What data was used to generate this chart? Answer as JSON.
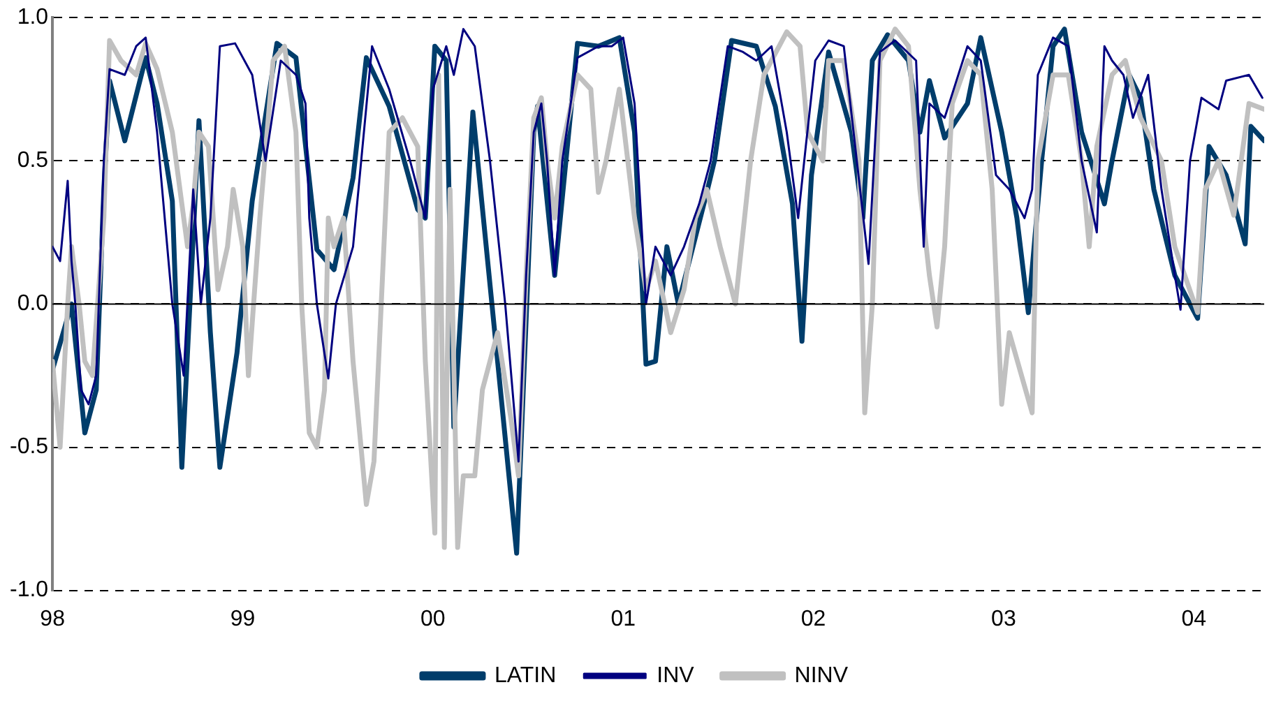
{
  "chart_data": {
    "type": "line",
    "xlim": [
      1998,
      2004.37
    ],
    "ylim": [
      -1,
      1
    ],
    "xticks": [
      {
        "value": 1998,
        "label": "98"
      },
      {
        "value": 1999,
        "label": "99"
      },
      {
        "value": 2000,
        "label": "00"
      },
      {
        "value": 2001,
        "label": "01"
      },
      {
        "value": 2002,
        "label": "02"
      },
      {
        "value": 2003,
        "label": "03"
      },
      {
        "value": 2004,
        "label": "04"
      }
    ],
    "yticks": [
      {
        "value": -1,
        "label": "-1.0"
      },
      {
        "value": -0.5,
        "label": "-0.5"
      },
      {
        "value": 0,
        "label": "0.0"
      },
      {
        "value": 0.5,
        "label": "0.5"
      },
      {
        "value": 1,
        "label": "1.0"
      }
    ],
    "grid": "y",
    "legend": "bottom",
    "marker": "none",
    "line_style": "solid",
    "ref_lines": [
      {
        "axis": "y",
        "value": 0,
        "color": "#000000",
        "line_style": "solid"
      }
    ],
    "series": [
      {
        "name": "LATIN",
        "color": "#003d6b",
        "x": [
          1998.0,
          1998.1,
          1998.17,
          1998.23,
          1998.27,
          1998.3,
          1998.38,
          1998.49,
          1998.55,
          1998.63,
          1998.68,
          1998.77,
          1998.83,
          1998.88,
          1998.97,
          1999.05,
          1999.18,
          1999.28,
          1999.39,
          1999.48,
          1999.58,
          1999.65,
          1999.77,
          1999.92,
          1999.96,
          2000.01,
          2000.07,
          2000.11,
          2000.21,
          2000.34,
          2000.44,
          2000.53,
          2000.55,
          2000.64,
          2000.76,
          2000.87,
          2000.98,
          2001.06,
          2001.12,
          2001.17,
          2001.23,
          2001.29,
          2001.44,
          2001.48,
          2001.57,
          2001.7,
          2001.8,
          2001.89,
          2001.94,
          2001.99,
          2002.08,
          2002.2,
          2002.26,
          2002.31,
          2002.39,
          2002.5,
          2002.56,
          2002.61,
          2002.69,
          2002.81,
          2002.88,
          2002.99,
          2003.07,
          2003.13,
          2003.2,
          2003.26,
          2003.32,
          2003.41,
          2003.53,
          2003.57,
          2003.66,
          2003.72,
          2003.79,
          2003.9,
          2004.02,
          2004.08,
          2004.17,
          2004.27,
          2004.3,
          2004.37
        ],
        "values": [
          -0.23,
          0.0,
          -0.45,
          -0.3,
          0.4,
          0.78,
          0.57,
          0.86,
          0.7,
          0.36,
          -0.57,
          0.64,
          -0.1,
          -0.57,
          -0.17,
          0.36,
          0.91,
          0.86,
          0.19,
          0.12,
          0.44,
          0.86,
          0.69,
          0.33,
          0.3,
          0.9,
          0.85,
          -0.43,
          0.67,
          -0.2,
          -0.87,
          0.6,
          0.69,
          0.1,
          0.91,
          0.9,
          0.93,
          0.6,
          -0.21,
          -0.2,
          0.2,
          0.0,
          0.39,
          0.5,
          0.92,
          0.9,
          0.69,
          0.35,
          -0.13,
          0.45,
          0.88,
          0.6,
          0.3,
          0.85,
          0.94,
          0.85,
          0.6,
          0.78,
          0.58,
          0.7,
          0.93,
          0.6,
          0.3,
          -0.03,
          0.5,
          0.9,
          0.96,
          0.6,
          0.35,
          0.5,
          0.8,
          0.72,
          0.4,
          0.1,
          -0.05,
          0.55,
          0.45,
          0.21,
          0.62,
          0.57
        ]
      },
      {
        "name": "INV",
        "color": "#000080",
        "x": [
          1998.0,
          1998.04,
          1998.08,
          1998.1,
          1998.12,
          1998.15,
          1998.19,
          1998.23,
          1998.27,
          1998.3,
          1998.38,
          1998.44,
          1998.49,
          1998.55,
          1998.63,
          1998.69,
          1998.74,
          1998.78,
          1998.83,
          1998.88,
          1998.96,
          1999.05,
          1999.12,
          1999.2,
          1999.28,
          1999.33,
          1999.35,
          1999.39,
          1999.45,
          1999.49,
          1999.58,
          1999.68,
          1999.77,
          1999.88,
          1999.96,
          2000.0,
          2000.07,
          2000.11,
          2000.16,
          2000.22,
          2000.3,
          2000.38,
          2000.45,
          2000.49,
          2000.53,
          2000.57,
          2000.6,
          2000.64,
          2000.68,
          2000.76,
          2000.87,
          2000.94,
          2001.0,
          2001.06,
          2001.12,
          2001.17,
          2001.25,
          2001.32,
          2001.4,
          2001.46,
          2001.55,
          2001.63,
          2001.7,
          2001.78,
          2001.86,
          2001.92,
          2001.96,
          2002.01,
          2002.08,
          2002.16,
          2002.29,
          2002.35,
          2002.43,
          2002.54,
          2002.58,
          2002.61,
          2002.69,
          2002.81,
          2002.88,
          2002.96,
          2003.03,
          2003.11,
          2003.15,
          2003.18,
          2003.26,
          2003.34,
          2003.41,
          2003.49,
          2003.53,
          2003.57,
          2003.63,
          2003.68,
          2003.76,
          2003.83,
          2003.9,
          2003.93,
          2003.98,
          2004.04,
          2004.13,
          2004.17,
          2004.29,
          2004.36
        ],
        "values": [
          0.2,
          0.15,
          0.43,
          0.15,
          0.0,
          -0.3,
          -0.35,
          -0.25,
          0.5,
          0.82,
          0.8,
          0.9,
          0.93,
          0.6,
          0.0,
          -0.25,
          0.4,
          0.0,
          0.3,
          0.9,
          0.91,
          0.8,
          0.5,
          0.85,
          0.8,
          0.7,
          0.3,
          0.0,
          -0.26,
          0.0,
          0.2,
          0.9,
          0.75,
          0.5,
          0.3,
          0.75,
          0.9,
          0.8,
          0.96,
          0.9,
          0.5,
          0.0,
          -0.55,
          0.1,
          0.6,
          0.7,
          0.5,
          0.1,
          0.5,
          0.86,
          0.9,
          0.9,
          0.93,
          0.7,
          0.0,
          0.2,
          0.1,
          0.2,
          0.35,
          0.5,
          0.9,
          0.88,
          0.85,
          0.9,
          0.6,
          0.3,
          0.55,
          0.85,
          0.92,
          0.9,
          0.14,
          0.88,
          0.92,
          0.85,
          0.2,
          0.7,
          0.65,
          0.9,
          0.85,
          0.45,
          0.4,
          0.3,
          0.4,
          0.8,
          0.93,
          0.9,
          0.5,
          0.25,
          0.9,
          0.85,
          0.8,
          0.65,
          0.8,
          0.4,
          0.1,
          -0.02,
          0.5,
          0.72,
          0.68,
          0.78,
          0.8,
          0.72
        ]
      },
      {
        "name": "NINV",
        "color": "#c0c0c0",
        "x": [
          1998.0,
          1998.04,
          1998.08,
          1998.1,
          1998.14,
          1998.17,
          1998.21,
          1998.27,
          1998.3,
          1998.36,
          1998.44,
          1998.49,
          1998.55,
          1998.63,
          1998.71,
          1998.74,
          1998.77,
          1998.82,
          1998.87,
          1998.92,
          1998.95,
          1999.0,
          1999.03,
          1999.09,
          1999.16,
          1999.22,
          1999.28,
          1999.31,
          1999.35,
          1999.39,
          1999.43,
          1999.45,
          1999.48,
          1999.53,
          1999.58,
          1999.65,
          1999.69,
          1999.77,
          1999.84,
          1999.92,
          1999.96,
          2000.01,
          2000.03,
          2000.06,
          2000.09,
          2000.13,
          2000.16,
          2000.22,
          2000.26,
          2000.3,
          2000.34,
          2000.41,
          2000.45,
          2000.49,
          2000.53,
          2000.57,
          2000.6,
          2000.64,
          2000.68,
          2000.76,
          2000.83,
          2000.87,
          2000.91,
          2000.98,
          2001.06,
          2001.12,
          2001.17,
          2001.25,
          2001.32,
          2001.38,
          2001.44,
          2001.51,
          2001.57,
          2001.59,
          2001.67,
          2001.74,
          2001.86,
          2001.93,
          2001.97,
          2002.05,
          2002.08,
          2002.16,
          2002.24,
          2002.27,
          2002.31,
          2002.35,
          2002.43,
          2002.5,
          2002.56,
          2002.61,
          2002.65,
          2002.69,
          2002.73,
          2002.81,
          2002.88,
          2002.94,
          2002.99,
          2003.03,
          2003.15,
          2003.18,
          2003.26,
          2003.34,
          2003.41,
          2003.45,
          2003.49,
          2003.57,
          2003.64,
          2003.72,
          2003.83,
          2003.9,
          2004.02,
          2004.06,
          2004.13,
          2004.21,
          2004.29,
          2004.37
        ],
        "values": [
          -0.2,
          -0.5,
          0.0,
          0.2,
          0.0,
          -0.2,
          -0.25,
          0.3,
          0.92,
          0.85,
          0.8,
          0.91,
          0.82,
          0.6,
          0.2,
          0.35,
          0.6,
          0.55,
          0.05,
          0.2,
          0.4,
          0.2,
          -0.25,
          0.3,
          0.85,
          0.9,
          0.6,
          0.0,
          -0.45,
          -0.5,
          -0.3,
          0.3,
          0.2,
          0.3,
          -0.2,
          -0.7,
          -0.55,
          0.6,
          0.65,
          0.55,
          -0.2,
          -0.8,
          0.8,
          -0.85,
          0.4,
          -0.85,
          -0.6,
          -0.6,
          -0.3,
          -0.2,
          -0.1,
          -0.4,
          -0.6,
          0.1,
          0.65,
          0.72,
          0.5,
          0.3,
          0.55,
          0.8,
          0.75,
          0.39,
          0.5,
          0.75,
          0.3,
          0.05,
          0.15,
          -0.1,
          0.05,
          0.3,
          0.4,
          0.2,
          0.05,
          0.0,
          0.5,
          0.8,
          0.95,
          0.9,
          0.6,
          0.5,
          0.85,
          0.85,
          0.5,
          -0.38,
          0.0,
          0.85,
          0.96,
          0.9,
          0.4,
          0.1,
          -0.08,
          0.2,
          0.7,
          0.85,
          0.8,
          0.4,
          -0.35,
          -0.1,
          -0.38,
          0.5,
          0.8,
          0.8,
          0.5,
          0.2,
          0.55,
          0.8,
          0.85,
          0.65,
          0.5,
          0.2,
          -0.03,
          0.4,
          0.5,
          0.31,
          0.7,
          0.68
        ]
      }
    ]
  }
}
